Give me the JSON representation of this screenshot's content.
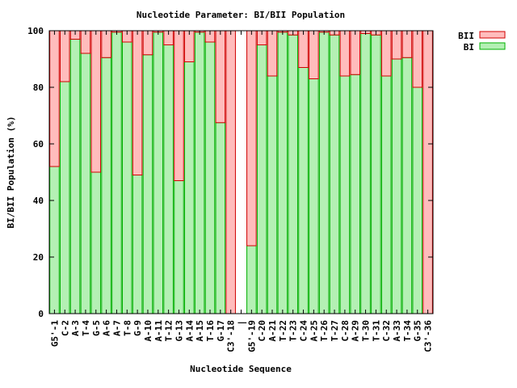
{
  "chart_data": {
    "type": "bar",
    "stacked": true,
    "title": "Nucleotide Parameter: BI/BII Population",
    "xlabel": "Nucleotide Sequence",
    "ylabel": "BI/BII Population (%)",
    "ylim": [
      0,
      100
    ],
    "yticks": [
      0,
      20,
      40,
      60,
      80,
      100
    ],
    "grid": false,
    "legend_position": "top-right, outside plot",
    "categories": [
      "G5'-1",
      "C-2",
      "A-3",
      "T-4",
      "G-5",
      "A-6",
      "A-7",
      "T-8",
      "G-9",
      "A-10",
      "A-11",
      "T-12",
      "G-13",
      "A-14",
      "A-15",
      "T-16",
      "G-17",
      "C3'-18",
      "|",
      "G5'-19",
      "C-20",
      "A-21",
      "T-22",
      "T-23",
      "C-24",
      "A-25",
      "T-26",
      "T-27",
      "C-28",
      "A-29",
      "T-30",
      "T-31",
      "C-32",
      "A-33",
      "T-34",
      "G-35",
      "C3'-36"
    ],
    "series": [
      {
        "name": "BI",
        "color": "#b4f0b4",
        "stroke": "#00b000",
        "values": [
          52,
          82,
          97,
          92,
          50,
          90.5,
          99.5,
          96,
          49,
          91.5,
          99.5,
          95,
          47,
          89,
          99.5,
          96,
          67.5,
          0,
          null,
          24,
          95,
          84,
          99.5,
          98.5,
          87,
          83,
          99.5,
          98.5,
          84,
          84.5,
          99,
          98.5,
          84,
          90,
          90.5,
          80,
          0
        ]
      },
      {
        "name": "BII",
        "color": "#ffbcbc",
        "stroke": "#d00000",
        "values": [
          48,
          18,
          3,
          8,
          50,
          9.5,
          0.5,
          4,
          51,
          8.5,
          0.5,
          5,
          53,
          11,
          0.5,
          4,
          32.5,
          100,
          null,
          76,
          5,
          16,
          0.5,
          1.5,
          13,
          17,
          0.5,
          1.5,
          16,
          15.5,
          1,
          1.5,
          16,
          10,
          9.5,
          20,
          100
        ]
      }
    ]
  }
}
